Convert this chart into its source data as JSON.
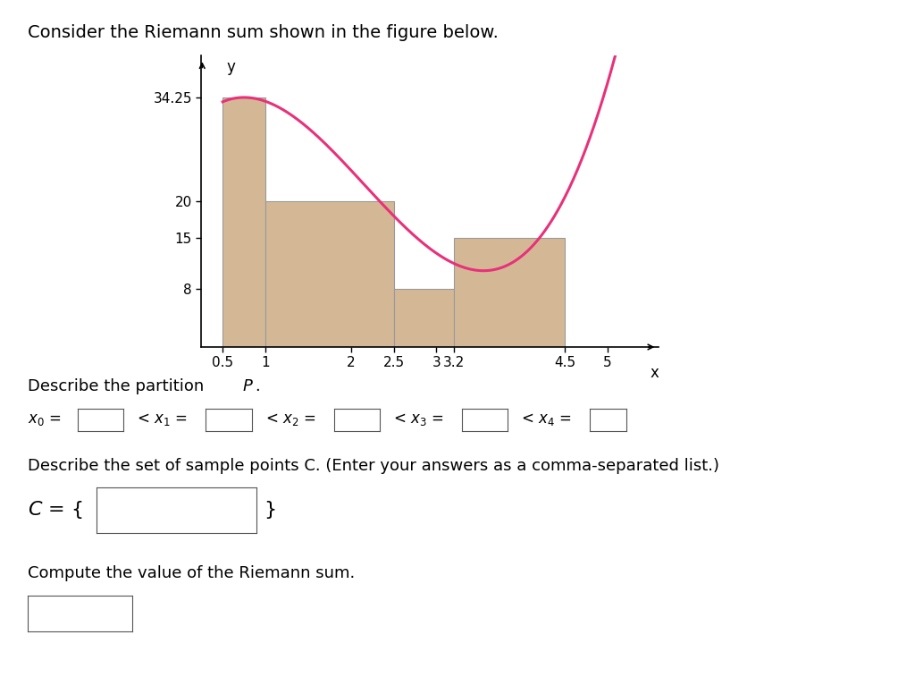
{
  "title": "Consider the Riemann sum shown in the figure below.",
  "bar_color": "#D4B896",
  "bar_edge_color": "#999999",
  "curve_color": "#E8317A",
  "bars": [
    {
      "x_left": 0.5,
      "x_right": 1.0,
      "height": 34.25
    },
    {
      "x_left": 1.0,
      "x_right": 2.5,
      "height": 20.0
    },
    {
      "x_left": 2.5,
      "x_right": 3.2,
      "height": 8.0
    },
    {
      "x_left": 3.2,
      "x_right": 4.5,
      "height": 15.0
    }
  ],
  "yticks": [
    8,
    15,
    20,
    34.25
  ],
  "xticks": [
    0.5,
    1,
    2,
    2.5,
    3,
    3.2,
    4.5,
    5
  ],
  "xtick_labels": [
    "0.5",
    "1",
    "2",
    "2.5",
    "3",
    "3.2",
    "4.5",
    "5"
  ],
  "xlim": [
    0.25,
    5.6
  ],
  "ylim": [
    0,
    40
  ],
  "xlabel": "x",
  "ylabel": "y",
  "title_fontsize": 14,
  "tick_fontsize": 11,
  "describe_partition": "Describe the partition ",
  "describe_partition_italic": "P",
  "describe_partition_end": ".",
  "sample_points_text": "Describe the set of sample points C. (Enter your answers as a comma-separated list.)",
  "compute_text": "Compute the value of the Riemann sum.",
  "background_color": "#ffffff",
  "curve_xmin": 0.5,
  "curve_xmax": 5.35,
  "curve_a": 6.5,
  "curve_local_max_x": 0.75,
  "curve_local_min_x": 3.55
}
